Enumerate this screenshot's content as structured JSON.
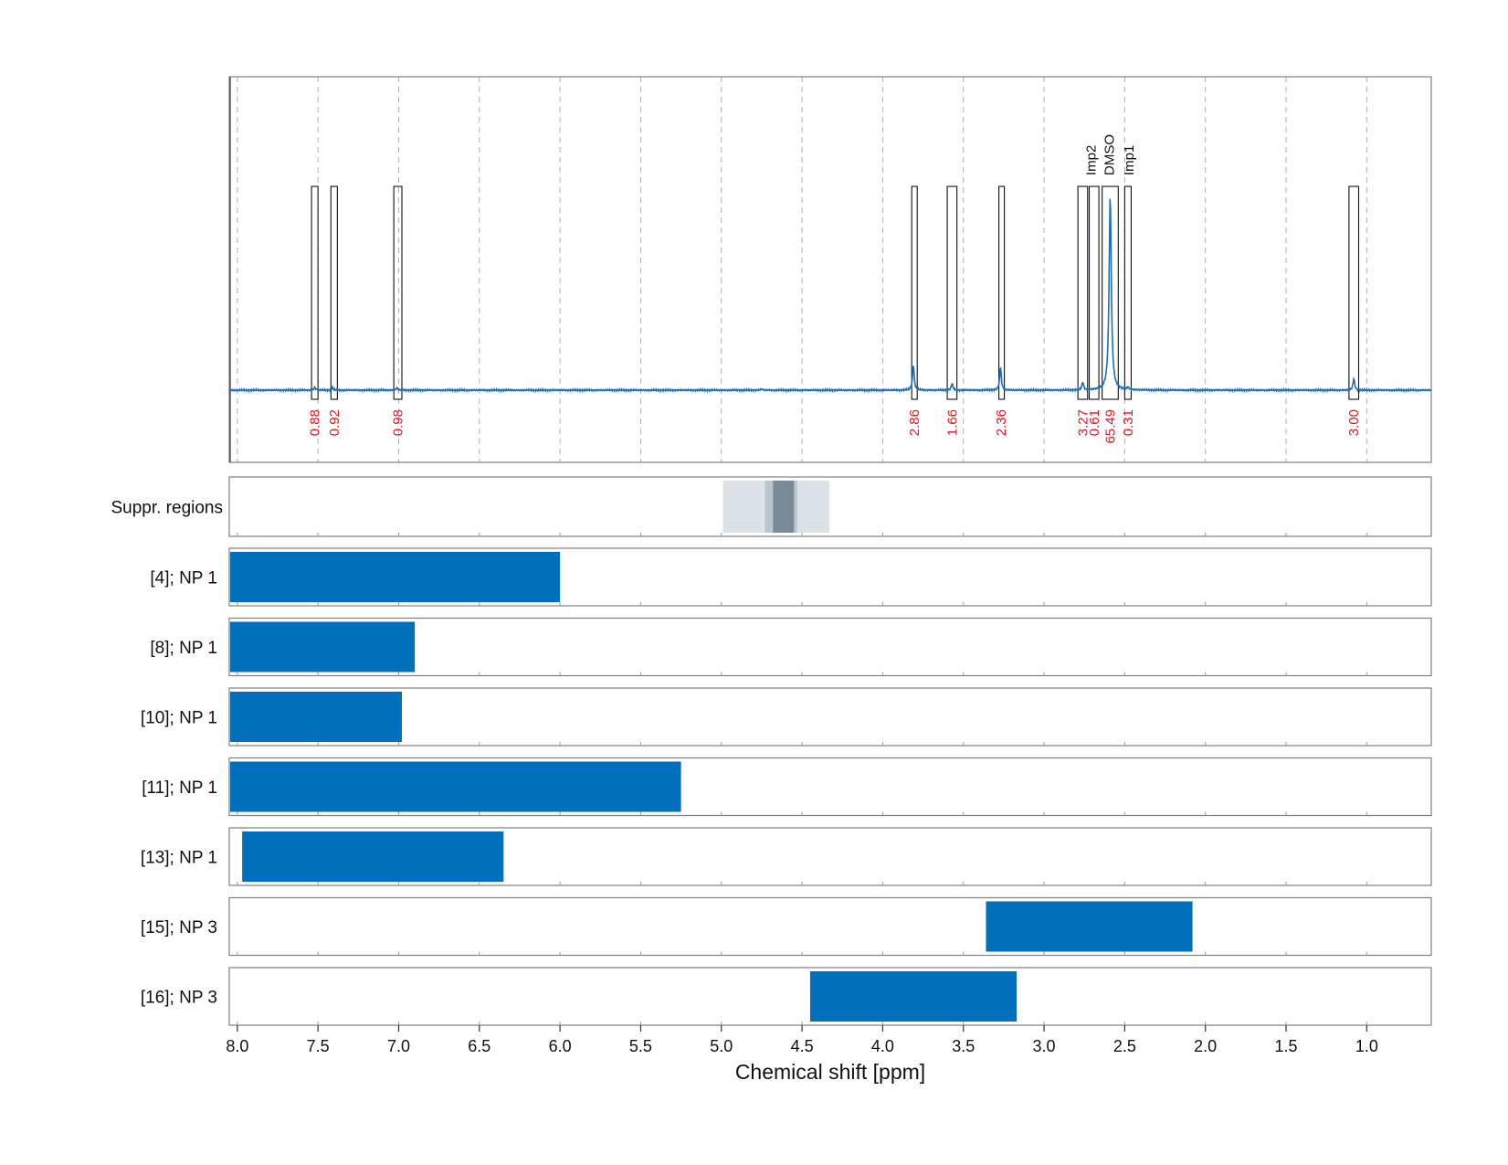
{
  "chart_data": {
    "type": "line",
    "xlabel": "Chemical shift [ppm]",
    "xlim": [
      8.05,
      0.6
    ],
    "x_reversed": true,
    "x_ticks": [
      "8.0",
      "7.5",
      "7.0",
      "6.5",
      "6.0",
      "5.5",
      "5.0",
      "4.5",
      "4.0",
      "3.5",
      "3.0",
      "2.5",
      "2.0",
      "1.5",
      "1.0"
    ],
    "grid": "vertical dashed",
    "line_color": "#1f6fb4",
    "spectrum": {
      "baseline_ppm_range": [
        8.05,
        0.6
      ],
      "peaks": [
        {
          "ppm": 7.52,
          "height": 0.015
        },
        {
          "ppm": 7.41,
          "height": 0.012
        },
        {
          "ppm": 7.01,
          "height": 0.012
        },
        {
          "ppm": 4.75,
          "height": 0.006
        },
        {
          "ppm": 3.81,
          "height": 0.13
        },
        {
          "ppm": 3.57,
          "height": 0.035
        },
        {
          "ppm": 3.27,
          "height": 0.12
        },
        {
          "ppm": 2.76,
          "height": 0.04
        },
        {
          "ppm": 2.59,
          "height": 1.0
        },
        {
          "ppm": 2.48,
          "height": 0.012
        },
        {
          "ppm": 1.08,
          "height": 0.06
        }
      ]
    },
    "integration_regions": [
      {
        "start": 7.54,
        "end": 7.5,
        "value": "0.88"
      },
      {
        "start": 7.42,
        "end": 7.38,
        "value": "0.92"
      },
      {
        "start": 7.03,
        "end": 6.98,
        "value": "0.98"
      },
      {
        "start": 3.82,
        "end": 3.79,
        "value": "2.86"
      },
      {
        "start": 3.6,
        "end": 3.54,
        "value": "1.66"
      },
      {
        "start": 3.28,
        "end": 3.25,
        "value": "2.36"
      },
      {
        "start": 2.79,
        "end": 2.73,
        "value": "3.27"
      },
      {
        "start": 2.72,
        "end": 2.66,
        "value": "0.61"
      },
      {
        "start": 2.64,
        "end": 2.54,
        "value": "65.49"
      },
      {
        "start": 2.5,
        "end": 2.46,
        "value": "0.31"
      },
      {
        "start": 1.11,
        "end": 1.05,
        "value": "3.00"
      }
    ],
    "annotations": [
      {
        "ppm": 2.715,
        "text": "Imp2"
      },
      {
        "ppm": 2.6,
        "text": "DMSO"
      },
      {
        "ppm": 2.48,
        "text": "Imp1"
      }
    ],
    "integral_color": "#e8141b",
    "suppressed_regions": {
      "label": "Suppr. regions",
      "bands": [
        {
          "start": 4.99,
          "end": 4.33,
          "shade": "#dbe2e8"
        },
        {
          "start": 4.73,
          "end": 4.53,
          "shade": "#b9c6d0"
        },
        {
          "start": 4.68,
          "end": 4.55,
          "shade": "#7a8a97"
        }
      ]
    },
    "np_rows": [
      {
        "label": "[4]; NP 1",
        "start": 8.05,
        "end": 6.0
      },
      {
        "label": "[8]; NP 1",
        "start": 8.05,
        "end": 6.9
      },
      {
        "label": "[10]; NP 1",
        "start": 8.05,
        "end": 6.98
      },
      {
        "label": "[11]; NP 1",
        "start": 8.05,
        "end": 5.25
      },
      {
        "label": "[13]; NP 1",
        "start": 7.97,
        "end": 6.35
      },
      {
        "label": "[15]; NP 3",
        "start": 3.36,
        "end": 2.08
      },
      {
        "label": "[16]; NP 3",
        "start": 4.45,
        "end": 3.17
      }
    ],
    "bar_color": "#0070bc"
  }
}
